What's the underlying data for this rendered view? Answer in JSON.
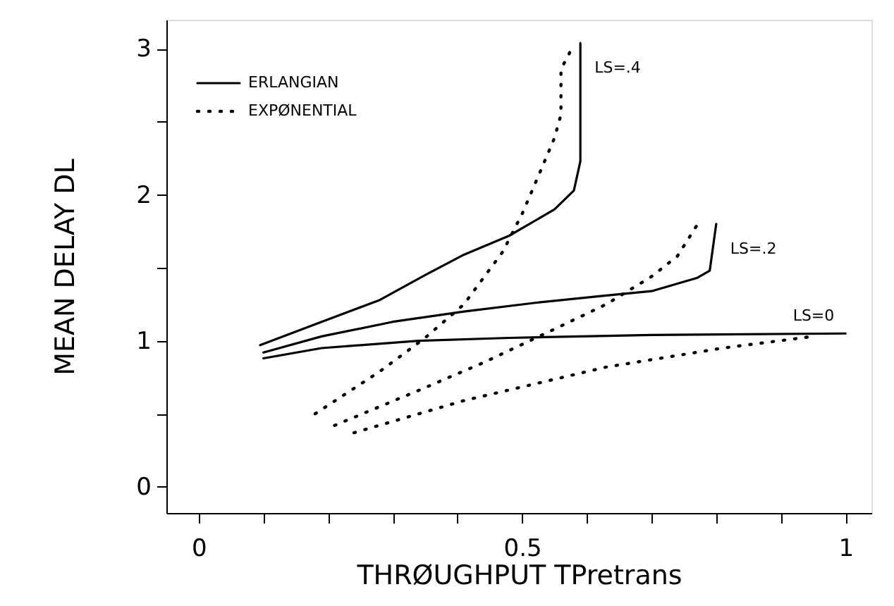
{
  "chart_data": {
    "type": "line",
    "xlabel": "THRØUGHPUT TPretrans",
    "ylabel": "MEAN DELAY DL",
    "xlim": [
      -0.05,
      1.04
    ],
    "ylim": [
      -0.18,
      3.2
    ],
    "xticks": [
      0,
      {
        "value": 0.1,
        "label": null
      },
      {
        "value": 0.2,
        "label": null
      },
      {
        "value": 0.3,
        "label": null
      },
      {
        "value": 0.4,
        "label": null
      },
      0.5,
      {
        "value": 0.6,
        "label": null
      },
      {
        "value": 0.7,
        "label": null
      },
      {
        "value": 0.8,
        "label": null
      },
      {
        "value": 0.9,
        "label": null
      },
      1
    ],
    "yticks": [
      0,
      {
        "value": 0.5,
        "label": null
      },
      1,
      {
        "value": 1.5,
        "label": null
      },
      2,
      {
        "value": 2.5,
        "label": null
      },
      3
    ],
    "grid": false,
    "legend": "top left",
    "marker": "none",
    "series": [
      {
        "name": "ERLANGIAN",
        "color": "#000000",
        "line_style": "solid",
        "x": [
          0.095,
          0.19,
          0.28,
          0.35,
          0.41,
          0.48,
          0.55,
          0.58,
          0.59,
          0.59,
          0.59
        ],
        "values": [
          0.97,
          1.13,
          1.28,
          1.45,
          1.59,
          1.72,
          1.9,
          2.03,
          2.23,
          2.55,
          3.04
        ]
      },
      {
        "color": "#000000",
        "line_style": "solid",
        "x": [
          0.1,
          0.19,
          0.3,
          0.41,
          0.52,
          0.63,
          0.7,
          0.77,
          0.79,
          0.8
        ],
        "values": [
          0.92,
          1.03,
          1.13,
          1.2,
          1.26,
          1.31,
          1.34,
          1.43,
          1.48,
          1.8
        ]
      },
      {
        "color": "#000000",
        "line_style": "solid",
        "x": [
          0.1,
          0.19,
          0.34,
          0.48,
          0.7,
          1.0
        ],
        "values": [
          0.88,
          0.95,
          1.0,
          1.02,
          1.04,
          1.05
        ]
      },
      {
        "name": "EXPØNENTIAL",
        "color": "#000000",
        "line_style": "dotted",
        "x": [
          0.18,
          0.28,
          0.35,
          0.41,
          0.47,
          0.5,
          0.53,
          0.55,
          0.56,
          0.56,
          0.58
        ],
        "values": [
          0.5,
          0.79,
          1.02,
          1.25,
          1.61,
          1.87,
          2.18,
          2.39,
          2.55,
          2.86,
          3.03
        ]
      },
      {
        "color": "#000000",
        "line_style": "dotted",
        "x": [
          0.21,
          0.34,
          0.44,
          0.55,
          0.63,
          0.7,
          0.74,
          0.77
        ],
        "values": [
          0.42,
          0.66,
          0.85,
          1.08,
          1.25,
          1.44,
          1.58,
          1.79
        ]
      },
      {
        "color": "#000000",
        "line_style": "dotted",
        "x": [
          0.24,
          0.41,
          0.63,
          0.81,
          0.95
        ],
        "values": [
          0.37,
          0.59,
          0.82,
          0.95,
          1.03
        ]
      }
    ],
    "annotations": [
      "LS=.4",
      "LS=.2",
      "LS=0"
    ]
  }
}
